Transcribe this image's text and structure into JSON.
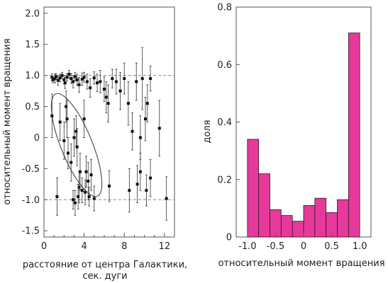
{
  "chart_data": [
    {
      "type": "scatter",
      "xlabel_line1": "расстояние от центра Галактики,",
      "xlabel_line2": "сек. дуги",
      "ylabel": "относительный момент вращения",
      "xlim": [
        0,
        13
      ],
      "ylim": [
        -1.6,
        2.1
      ],
      "xticks": [
        0,
        4,
        8,
        12
      ],
      "yticks": [
        -1.5,
        -1.0,
        -0.5,
        0,
        0.5,
        1.0,
        1.5,
        2.0
      ],
      "ytick_labels": [
        "-1.5",
        "-1.0",
        "-0.5",
        "0",
        "0.5",
        "1.0",
        "1.5",
        "2.0"
      ],
      "reference_lines": [
        1.0,
        -1.0
      ],
      "annotation": "ellipse around low-momentum points (~1.5–5 arcsec)",
      "points": [
        {
          "x": 0.8,
          "y": 0.97,
          "err": 0.06
        },
        {
          "x": 0.9,
          "y": 0.93,
          "err": 0.05
        },
        {
          "x": 1.1,
          "y": 0.95,
          "err": 0.07
        },
        {
          "x": 1.2,
          "y": 0.98,
          "err": 0.05
        },
        {
          "x": 1.4,
          "y": 0.92,
          "err": 0.08
        },
        {
          "x": 1.6,
          "y": 0.96,
          "err": 0.06
        },
        {
          "x": 1.8,
          "y": 1.0,
          "err": 0.05
        },
        {
          "x": 2.0,
          "y": 0.93,
          "err": 0.07
        },
        {
          "x": 2.1,
          "y": 0.88,
          "err": 0.09
        },
        {
          "x": 2.3,
          "y": 0.97,
          "err": 0.06
        },
        {
          "x": 2.5,
          "y": 1.02,
          "err": 0.06
        },
        {
          "x": 2.7,
          "y": 0.95,
          "err": 0.08
        },
        {
          "x": 2.9,
          "y": 0.9,
          "err": 0.1
        },
        {
          "x": 3.1,
          "y": 0.98,
          "err": 0.07
        },
        {
          "x": 3.3,
          "y": 0.93,
          "err": 0.09
        },
        {
          "x": 3.5,
          "y": 0.85,
          "err": 0.12
        },
        {
          "x": 3.8,
          "y": 0.94,
          "err": 0.1
        },
        {
          "x": 4.0,
          "y": 0.97,
          "err": 0.08
        },
        {
          "x": 4.3,
          "y": 0.9,
          "err": 0.12
        },
        {
          "x": 4.6,
          "y": 0.8,
          "err": 0.15
        },
        {
          "x": 5.0,
          "y": 0.96,
          "err": 0.1
        },
        {
          "x": 5.3,
          "y": 0.88,
          "err": 0.14
        },
        {
          "x": 5.6,
          "y": 0.9,
          "err": 0.18
        },
        {
          "x": 6.0,
          "y": 0.78,
          "err": 0.2
        },
        {
          "x": 6.2,
          "y": 0.65,
          "err": 0.25
        },
        {
          "x": 6.4,
          "y": 0.55,
          "err": 0.3
        },
        {
          "x": 6.8,
          "y": 0.95,
          "err": 0.15
        },
        {
          "x": 7.2,
          "y": 0.9,
          "err": 0.2
        },
        {
          "x": 7.6,
          "y": 0.75,
          "err": 0.3
        },
        {
          "x": 8.0,
          "y": 0.95,
          "err": 0.25
        },
        {
          "x": 8.4,
          "y": 0.55,
          "err": 0.35
        },
        {
          "x": 8.8,
          "y": 0.1,
          "err": 0.3
        },
        {
          "x": 9.2,
          "y": 0.9,
          "err": 0.3
        },
        {
          "x": 9.6,
          "y": 0.0,
          "err": 0.35
        },
        {
          "x": 9.8,
          "y": 0.95,
          "err": 0.5
        },
        {
          "x": 10.1,
          "y": 0.3,
          "err": 0.35
        },
        {
          "x": 10.3,
          "y": 0.55,
          "err": 0.3
        },
        {
          "x": 10.6,
          "y": 0.95,
          "err": 0.2
        },
        {
          "x": 11.5,
          "y": 0.15,
          "err": 0.45
        },
        {
          "x": 0.8,
          "y": 0.35,
          "err": 0.35
        },
        {
          "x": 1.3,
          "y": -0.95,
          "err": 0.3
        },
        {
          "x": 1.6,
          "y": 0.25,
          "err": 0.3
        },
        {
          "x": 2.0,
          "y": -0.05,
          "err": 0.3
        },
        {
          "x": 2.2,
          "y": 0.5,
          "err": 0.25
        },
        {
          "x": 2.3,
          "y": 0.3,
          "err": 0.3
        },
        {
          "x": 2.4,
          "y": -0.25,
          "err": 0.25
        },
        {
          "x": 2.7,
          "y": -0.4,
          "err": 0.3
        },
        {
          "x": 3.0,
          "y": 0.0,
          "err": 0.3
        },
        {
          "x": 3.2,
          "y": 0.1,
          "err": 0.25
        },
        {
          "x": 3.3,
          "y": -0.15,
          "err": 0.3
        },
        {
          "x": 3.5,
          "y": -0.8,
          "err": 0.25
        },
        {
          "x": 3.6,
          "y": -0.55,
          "err": 0.3
        },
        {
          "x": 3.8,
          "y": -0.85,
          "err": 0.2
        },
        {
          "x": 4.0,
          "y": 0.3,
          "err": 0.3
        },
        {
          "x": 4.2,
          "y": -0.55,
          "err": 0.25
        },
        {
          "x": 4.4,
          "y": -0.7,
          "err": 0.3
        },
        {
          "x": 4.7,
          "y": -0.6,
          "err": 0.25
        },
        {
          "x": 2.9,
          "y": -1.0,
          "err": 0.15
        },
        {
          "x": 3.1,
          "y": -1.05,
          "err": 0.2
        },
        {
          "x": 3.4,
          "y": -0.95,
          "err": 0.2
        },
        {
          "x": 4.1,
          "y": -0.88,
          "err": 0.2
        },
        {
          "x": 4.5,
          "y": -0.95,
          "err": 0.15
        },
        {
          "x": 5.0,
          "y": -0.98,
          "err": 0.2
        },
        {
          "x": 6.5,
          "y": -0.78,
          "err": 0.25
        },
        {
          "x": 8.5,
          "y": -0.85,
          "err": 0.35
        },
        {
          "x": 9.3,
          "y": -0.75,
          "err": 0.3
        },
        {
          "x": 9.6,
          "y": -0.55,
          "err": 0.3
        },
        {
          "x": 10.2,
          "y": -0.85,
          "err": 0.25
        },
        {
          "x": 10.6,
          "y": -0.65,
          "err": 0.3
        },
        {
          "x": 12.2,
          "y": -0.98,
          "err": 0.35
        }
      ]
    },
    {
      "type": "bar",
      "xlabel": "относительный момент вращения",
      "ylabel": "доля",
      "xlim": [
        -1.2,
        1.2
      ],
      "ylim": [
        0,
        0.8
      ],
      "xticks": [
        -1.0,
        -0.5,
        0,
        0.5,
        1.0
      ],
      "xtick_labels": [
        "-1.0",
        "-0.5",
        "0",
        "0.5",
        "1.0"
      ],
      "yticks": [
        0,
        0.2,
        0.4,
        0.6,
        0.8
      ],
      "ytick_labels": [
        "0",
        "0.2",
        "0.4",
        "0.6",
        "0.8"
      ],
      "bin_edges": [
        -1.0,
        -0.8,
        -0.6,
        -0.4,
        -0.2,
        0.0,
        0.2,
        0.4,
        0.6,
        0.8,
        1.0
      ],
      "values": [
        0.34,
        0.22,
        0.095,
        0.075,
        0.055,
        0.11,
        0.135,
        0.085,
        0.13,
        0.71
      ],
      "bar_color": "#e6399b",
      "bar_edge": "#222222"
    }
  ]
}
